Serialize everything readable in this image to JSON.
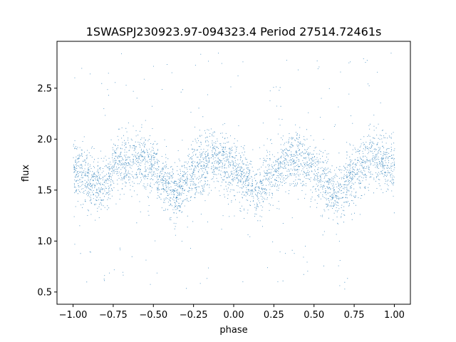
{
  "chart_data": {
    "type": "scatter",
    "title": "1SWASPJ230923.97-094323.4 Period 27514.72461s",
    "xlabel": "phase",
    "ylabel": "flux",
    "xlim": [
      -1.1,
      1.1
    ],
    "ylim": [
      0.38,
      2.96
    ],
    "grid": false,
    "x_ticks": [
      -1.0,
      -0.75,
      -0.5,
      -0.25,
      0.0,
      0.25,
      0.5,
      0.75,
      1.0
    ],
    "x_tick_labels": [
      "−1.00",
      "−0.75",
      "−0.50",
      "−0.25",
      "0.00",
      "0.25",
      "0.50",
      "0.75",
      "1.00"
    ],
    "y_ticks": [
      0.5,
      1.0,
      1.5,
      2.0,
      2.5
    ],
    "y_tick_labels": [
      "0.5",
      "1.0",
      "1.5",
      "2.0",
      "2.5"
    ],
    "point_color": "#1f77b4",
    "series": [
      {
        "phase_range": [
          -1.0,
          1.0
        ],
        "curve": {
          "phase": [
            -1.0,
            -0.9,
            -0.82,
            -0.75,
            -0.7,
            -0.6,
            -0.5,
            -0.42,
            -0.36,
            -0.3,
            -0.2,
            -0.15,
            -0.1,
            0.0,
            0.08,
            0.14,
            0.2,
            0.3,
            0.35,
            0.4,
            0.5,
            0.58,
            0.64,
            0.7,
            0.8,
            0.85,
            0.9,
            1.0
          ],
          "flux": [
            1.72,
            1.6,
            1.5,
            1.72,
            1.78,
            1.8,
            1.72,
            1.55,
            1.42,
            1.6,
            1.75,
            1.8,
            1.8,
            1.73,
            1.58,
            1.45,
            1.6,
            1.76,
            1.8,
            1.78,
            1.7,
            1.55,
            1.42,
            1.58,
            1.75,
            1.8,
            1.8,
            1.73
          ]
        },
        "scatter_sigma": 0.14
      }
    ]
  }
}
